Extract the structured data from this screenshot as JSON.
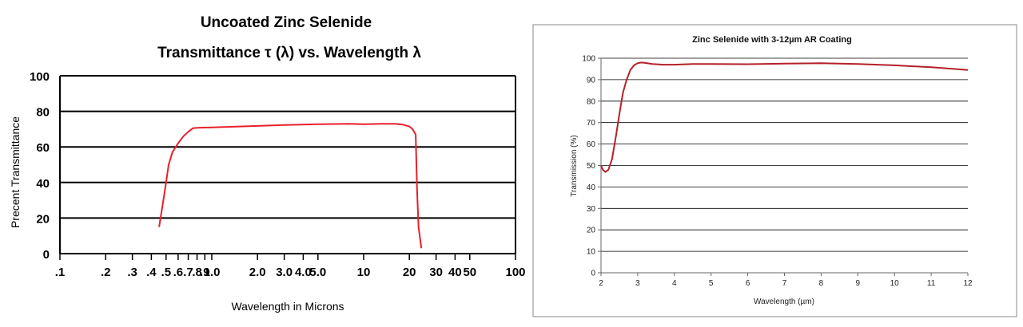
{
  "chart_data": [
    {
      "type": "line",
      "title": "Uncoated Zinc Selenide",
      "subtitle": "Transmittance τ (λ) vs. Wavelength λ",
      "xlabel": "Wavelength in Microns",
      "ylabel": "Precent Transmittance",
      "x_scale": "log",
      "xlim": [
        0.1,
        100
      ],
      "ylim": [
        0,
        100
      ],
      "x_tick_labels": [
        ".1",
        ".2",
        ".3",
        ".4",
        ".5",
        ".6",
        ".7",
        ".8",
        ".9",
        "1.0",
        "2.0",
        "3.0",
        "4.0",
        "5.0",
        "10",
        "20",
        "30",
        "40",
        "50",
        "100"
      ],
      "x_ticks": [
        0.1,
        0.2,
        0.3,
        0.4,
        0.5,
        0.6,
        0.7,
        0.8,
        0.9,
        1.0,
        2.0,
        3.0,
        4.0,
        5.0,
        10,
        20,
        30,
        40,
        50,
        100
      ],
      "y_tick_labels": [
        "0",
        "20",
        "40",
        "60",
        "80",
        "100"
      ],
      "y_ticks": [
        0,
        20,
        40,
        60,
        80,
        100
      ],
      "grid": "horizontal",
      "line_color": "#e8202a",
      "series": [
        {
          "x": [
            0.45,
            0.48,
            0.5,
            0.52,
            0.55,
            0.6,
            0.65,
            0.7,
            0.75,
            0.8,
            1.0,
            2.0,
            3.0,
            5.0,
            8.0,
            10,
            13,
            16,
            18,
            20,
            21,
            22,
            22.5,
            23,
            24
          ],
          "y": [
            15,
            30,
            40,
            50,
            57,
            62,
            66,
            68.5,
            70.5,
            70.7,
            71,
            71.8,
            72.3,
            72.8,
            73,
            72.8,
            73,
            73,
            72.6,
            71.5,
            70,
            67,
            35,
            15,
            3
          ]
        }
      ]
    },
    {
      "type": "line",
      "title": "Zinc Selenide with 3-12µm AR Coating",
      "xlabel": "Wavelength (µm)",
      "ylabel": "Transmission (%)",
      "xlim": [
        2,
        12
      ],
      "ylim": [
        0,
        100
      ],
      "x_ticks": [
        2,
        3,
        4,
        5,
        6,
        7,
        8,
        9,
        10,
        11,
        12
      ],
      "y_ticks": [
        0,
        10,
        20,
        30,
        40,
        50,
        60,
        70,
        80,
        90,
        100
      ],
      "grid": "horizontal",
      "line_color": "#b5202a",
      "series": [
        {
          "x": [
            2.0,
            2.05,
            2.12,
            2.2,
            2.3,
            2.4,
            2.5,
            2.6,
            2.7,
            2.8,
            2.9,
            3.0,
            3.1,
            3.2,
            3.4,
            3.7,
            4.0,
            4.5,
            5.0,
            6.0,
            7.0,
            8.0,
            9.0,
            10.0,
            11.0,
            12.0
          ],
          "y": [
            50,
            48,
            47,
            48,
            53,
            63,
            74,
            84,
            90,
            94.5,
            96.7,
            97.7,
            98,
            97.8,
            97.3,
            97,
            97,
            97.3,
            97.3,
            97.2,
            97.5,
            97.7,
            97.3,
            96.7,
            95.8,
            94.5
          ]
        }
      ]
    }
  ]
}
